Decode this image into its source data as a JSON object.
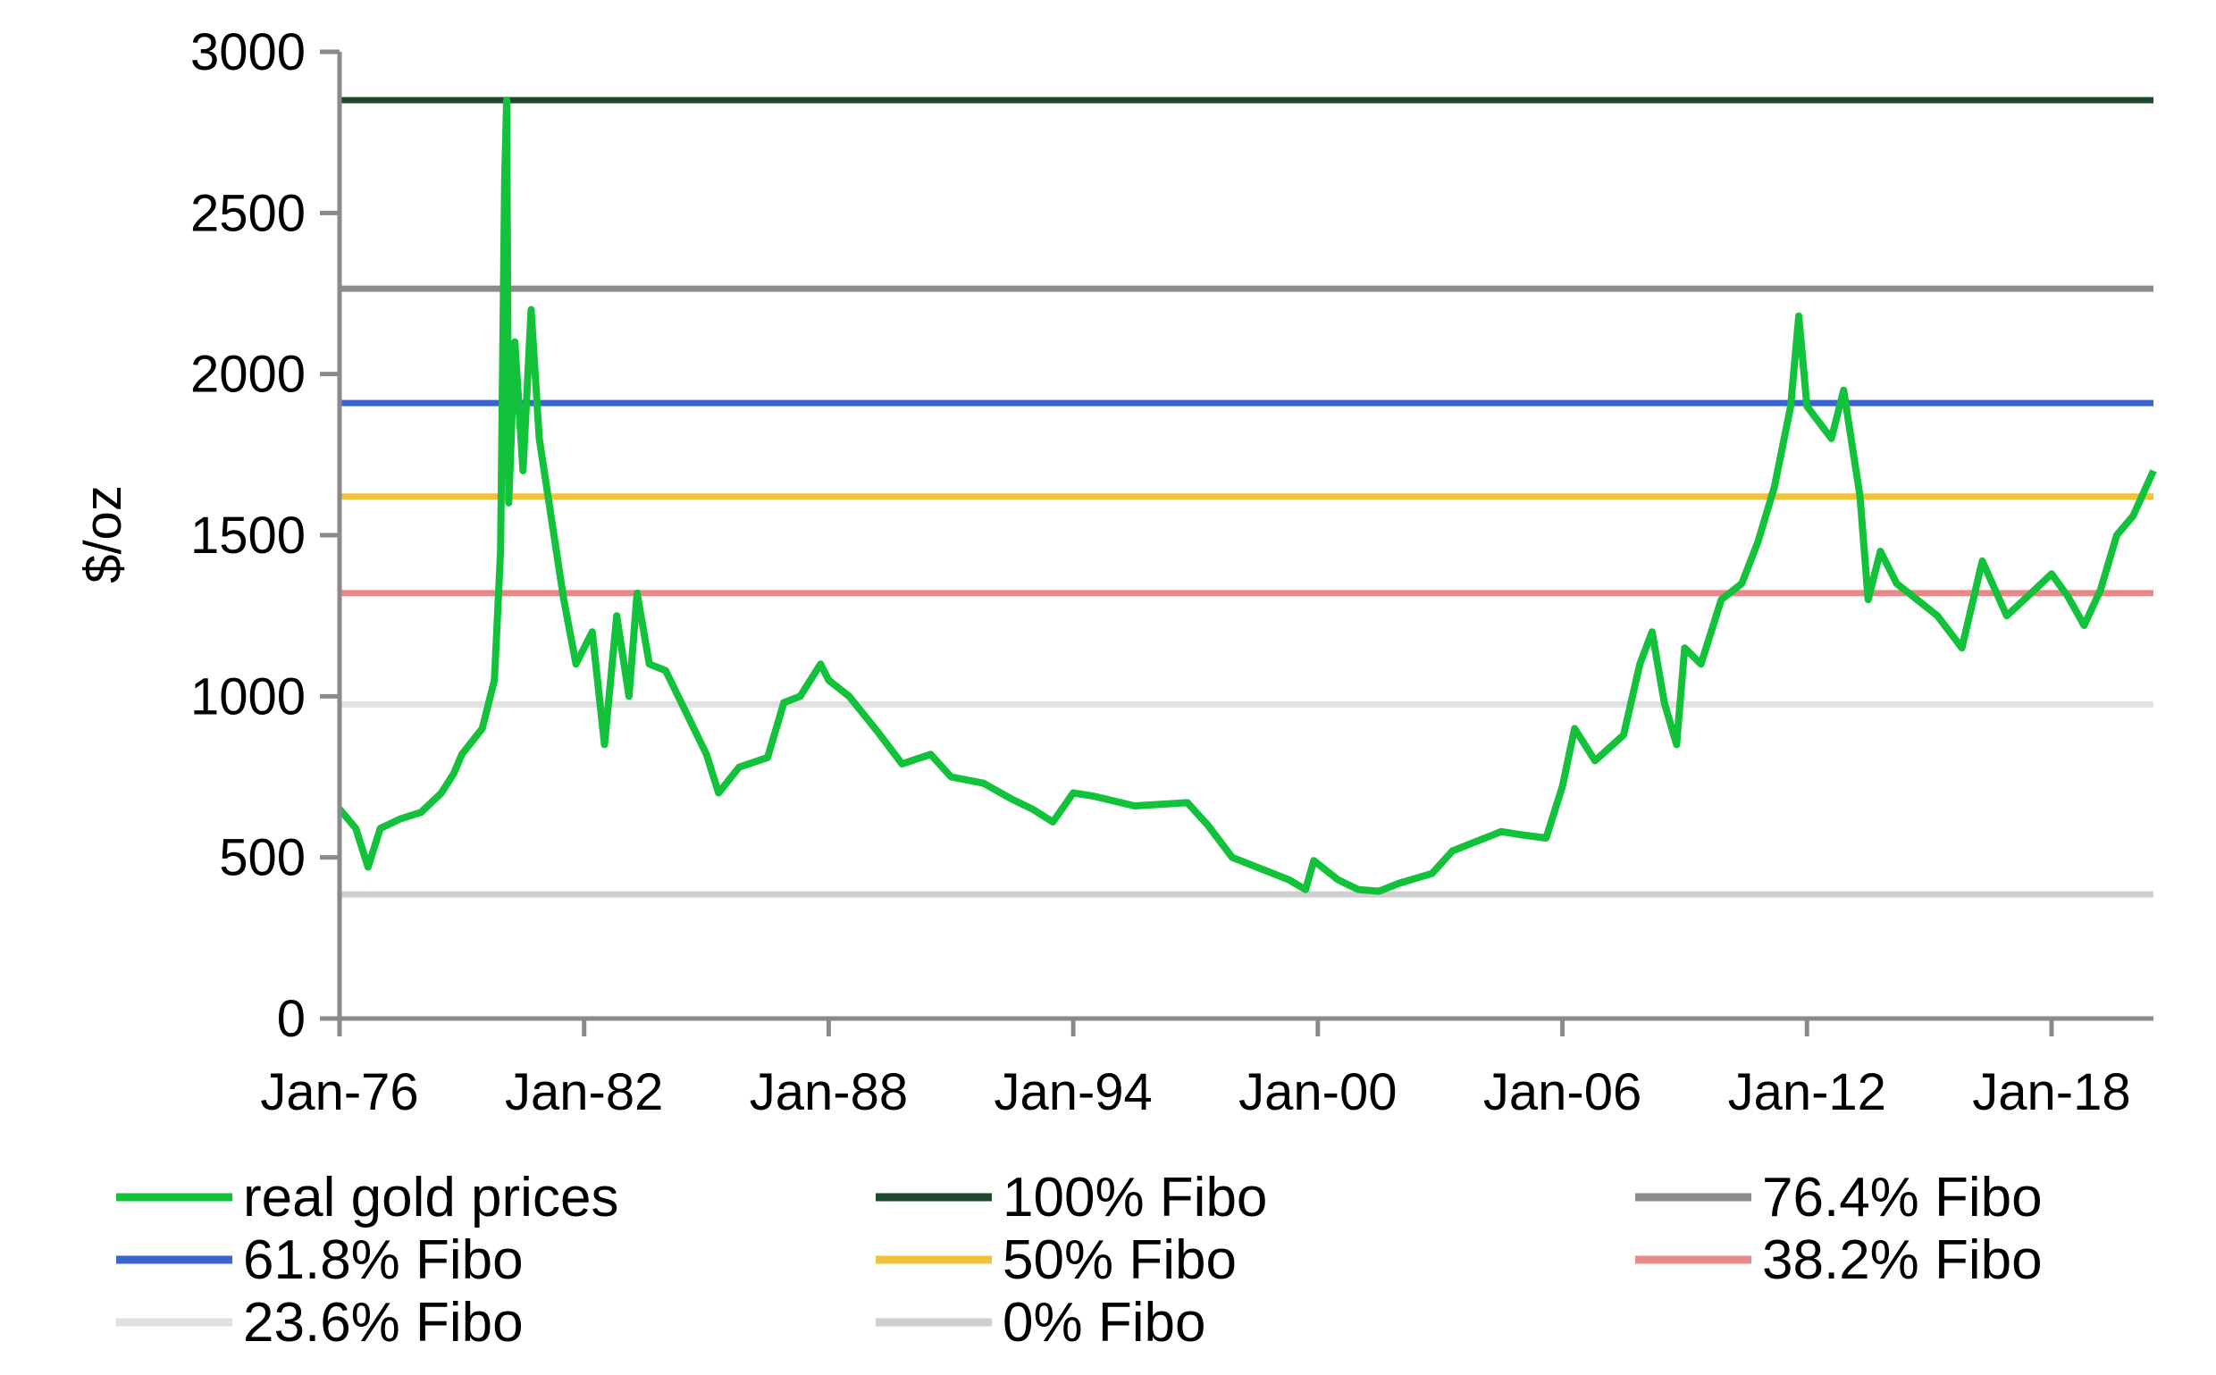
{
  "chart_data": {
    "type": "line",
    "title": "",
    "xlabel": "",
    "ylabel": "$/oz",
    "ylim": [
      0,
      3000
    ],
    "yticks": [
      0,
      500,
      1000,
      1500,
      2000,
      2500,
      3000
    ],
    "x_tick_labels": [
      "Jan-76",
      "Jan-82",
      "Jan-88",
      "Jan-94",
      "Jan-00",
      "Jan-06",
      "Jan-12",
      "Jan-18"
    ],
    "x_tick_years": [
      1976,
      1982,
      1988,
      1994,
      2000,
      2006,
      2012,
      2018
    ],
    "xlim": [
      1976,
      2020.5
    ],
    "grid": false,
    "legend_position": "bottom",
    "series": [
      {
        "name": "real gold prices",
        "color": "#12c23a",
        "points": [
          [
            1976.0,
            650
          ],
          [
            1976.4,
            590
          ],
          [
            1976.7,
            470
          ],
          [
            1977.0,
            590
          ],
          [
            1977.5,
            620
          ],
          [
            1978.0,
            640
          ],
          [
            1978.5,
            700
          ],
          [
            1978.8,
            760
          ],
          [
            1979.0,
            820
          ],
          [
            1979.5,
            900
          ],
          [
            1979.8,
            1050
          ],
          [
            1979.95,
            1450
          ],
          [
            1980.05,
            2600
          ],
          [
            1980.1,
            2850
          ],
          [
            1980.15,
            1600
          ],
          [
            1980.3,
            2100
          ],
          [
            1980.5,
            1700
          ],
          [
            1980.7,
            2200
          ],
          [
            1980.9,
            1800
          ],
          [
            1981.2,
            1550
          ],
          [
            1981.5,
            1300
          ],
          [
            1981.8,
            1100
          ],
          [
            1982.2,
            1200
          ],
          [
            1982.5,
            850
          ],
          [
            1982.8,
            1250
          ],
          [
            1983.1,
            1000
          ],
          [
            1983.3,
            1320
          ],
          [
            1983.6,
            1100
          ],
          [
            1984.0,
            1080
          ],
          [
            1984.5,
            950
          ],
          [
            1985.0,
            820
          ],
          [
            1985.3,
            700
          ],
          [
            1985.8,
            780
          ],
          [
            1986.5,
            810
          ],
          [
            1986.9,
            980
          ],
          [
            1987.3,
            1000
          ],
          [
            1987.8,
            1100
          ],
          [
            1988.0,
            1050
          ],
          [
            1988.5,
            1000
          ],
          [
            1989.2,
            890
          ],
          [
            1989.8,
            790
          ],
          [
            1990.5,
            820
          ],
          [
            1991.0,
            750
          ],
          [
            1991.8,
            730
          ],
          [
            1992.5,
            680
          ],
          [
            1993.0,
            650
          ],
          [
            1993.5,
            610
          ],
          [
            1994.0,
            700
          ],
          [
            1994.5,
            690
          ],
          [
            1995.5,
            660
          ],
          [
            1996.8,
            670
          ],
          [
            1997.3,
            600
          ],
          [
            1997.9,
            500
          ],
          [
            1998.5,
            470
          ],
          [
            1999.3,
            430
          ],
          [
            1999.7,
            400
          ],
          [
            1999.9,
            490
          ],
          [
            2000.5,
            430
          ],
          [
            2001.0,
            400
          ],
          [
            2001.5,
            395
          ],
          [
            2002.0,
            420
          ],
          [
            2002.8,
            450
          ],
          [
            2003.3,
            520
          ],
          [
            2003.9,
            550
          ],
          [
            2004.5,
            580
          ],
          [
            2005.0,
            570
          ],
          [
            2005.6,
            560
          ],
          [
            2006.0,
            720
          ],
          [
            2006.3,
            900
          ],
          [
            2006.8,
            800
          ],
          [
            2007.5,
            880
          ],
          [
            2007.9,
            1100
          ],
          [
            2008.2,
            1200
          ],
          [
            2008.5,
            980
          ],
          [
            2008.8,
            850
          ],
          [
            2009.0,
            1150
          ],
          [
            2009.4,
            1100
          ],
          [
            2009.9,
            1300
          ],
          [
            2010.4,
            1350
          ],
          [
            2010.8,
            1480
          ],
          [
            2011.2,
            1650
          ],
          [
            2011.6,
            1900
          ],
          [
            2011.8,
            2180
          ],
          [
            2012.0,
            1900
          ],
          [
            2012.3,
            1850
          ],
          [
            2012.6,
            1800
          ],
          [
            2012.9,
            1950
          ],
          [
            2013.3,
            1620
          ],
          [
            2013.5,
            1300
          ],
          [
            2013.8,
            1450
          ],
          [
            2014.2,
            1350
          ],
          [
            2014.7,
            1300
          ],
          [
            2015.2,
            1250
          ],
          [
            2015.8,
            1150
          ],
          [
            2016.3,
            1420
          ],
          [
            2016.9,
            1250
          ],
          [
            2017.5,
            1320
          ],
          [
            2018.0,
            1380
          ],
          [
            2018.4,
            1310
          ],
          [
            2018.8,
            1220
          ],
          [
            2019.2,
            1330
          ],
          [
            2019.6,
            1500
          ],
          [
            2020.0,
            1560
          ],
          [
            2020.5,
            1700
          ]
        ]
      },
      {
        "name": "100% Fibo",
        "color": "#1d4a2c",
        "level": 2850
      },
      {
        "name": "76.4% Fibo",
        "color": "#8c8c8c",
        "level": 2265
      },
      {
        "name": "61.8% Fibo",
        "color": "#3a64d0",
        "level": 1910
      },
      {
        "name": "50% Fibo",
        "color": "#f0c33a",
        "level": 1620
      },
      {
        "name": "38.2% Fibo",
        "color": "#e88888",
        "level": 1320
      },
      {
        "name": "23.6% Fibo",
        "color": "#e1e1e1",
        "level": 975
      },
      {
        "name": "0% Fibo",
        "color": "#cfcfcf",
        "level": 385
      }
    ]
  }
}
